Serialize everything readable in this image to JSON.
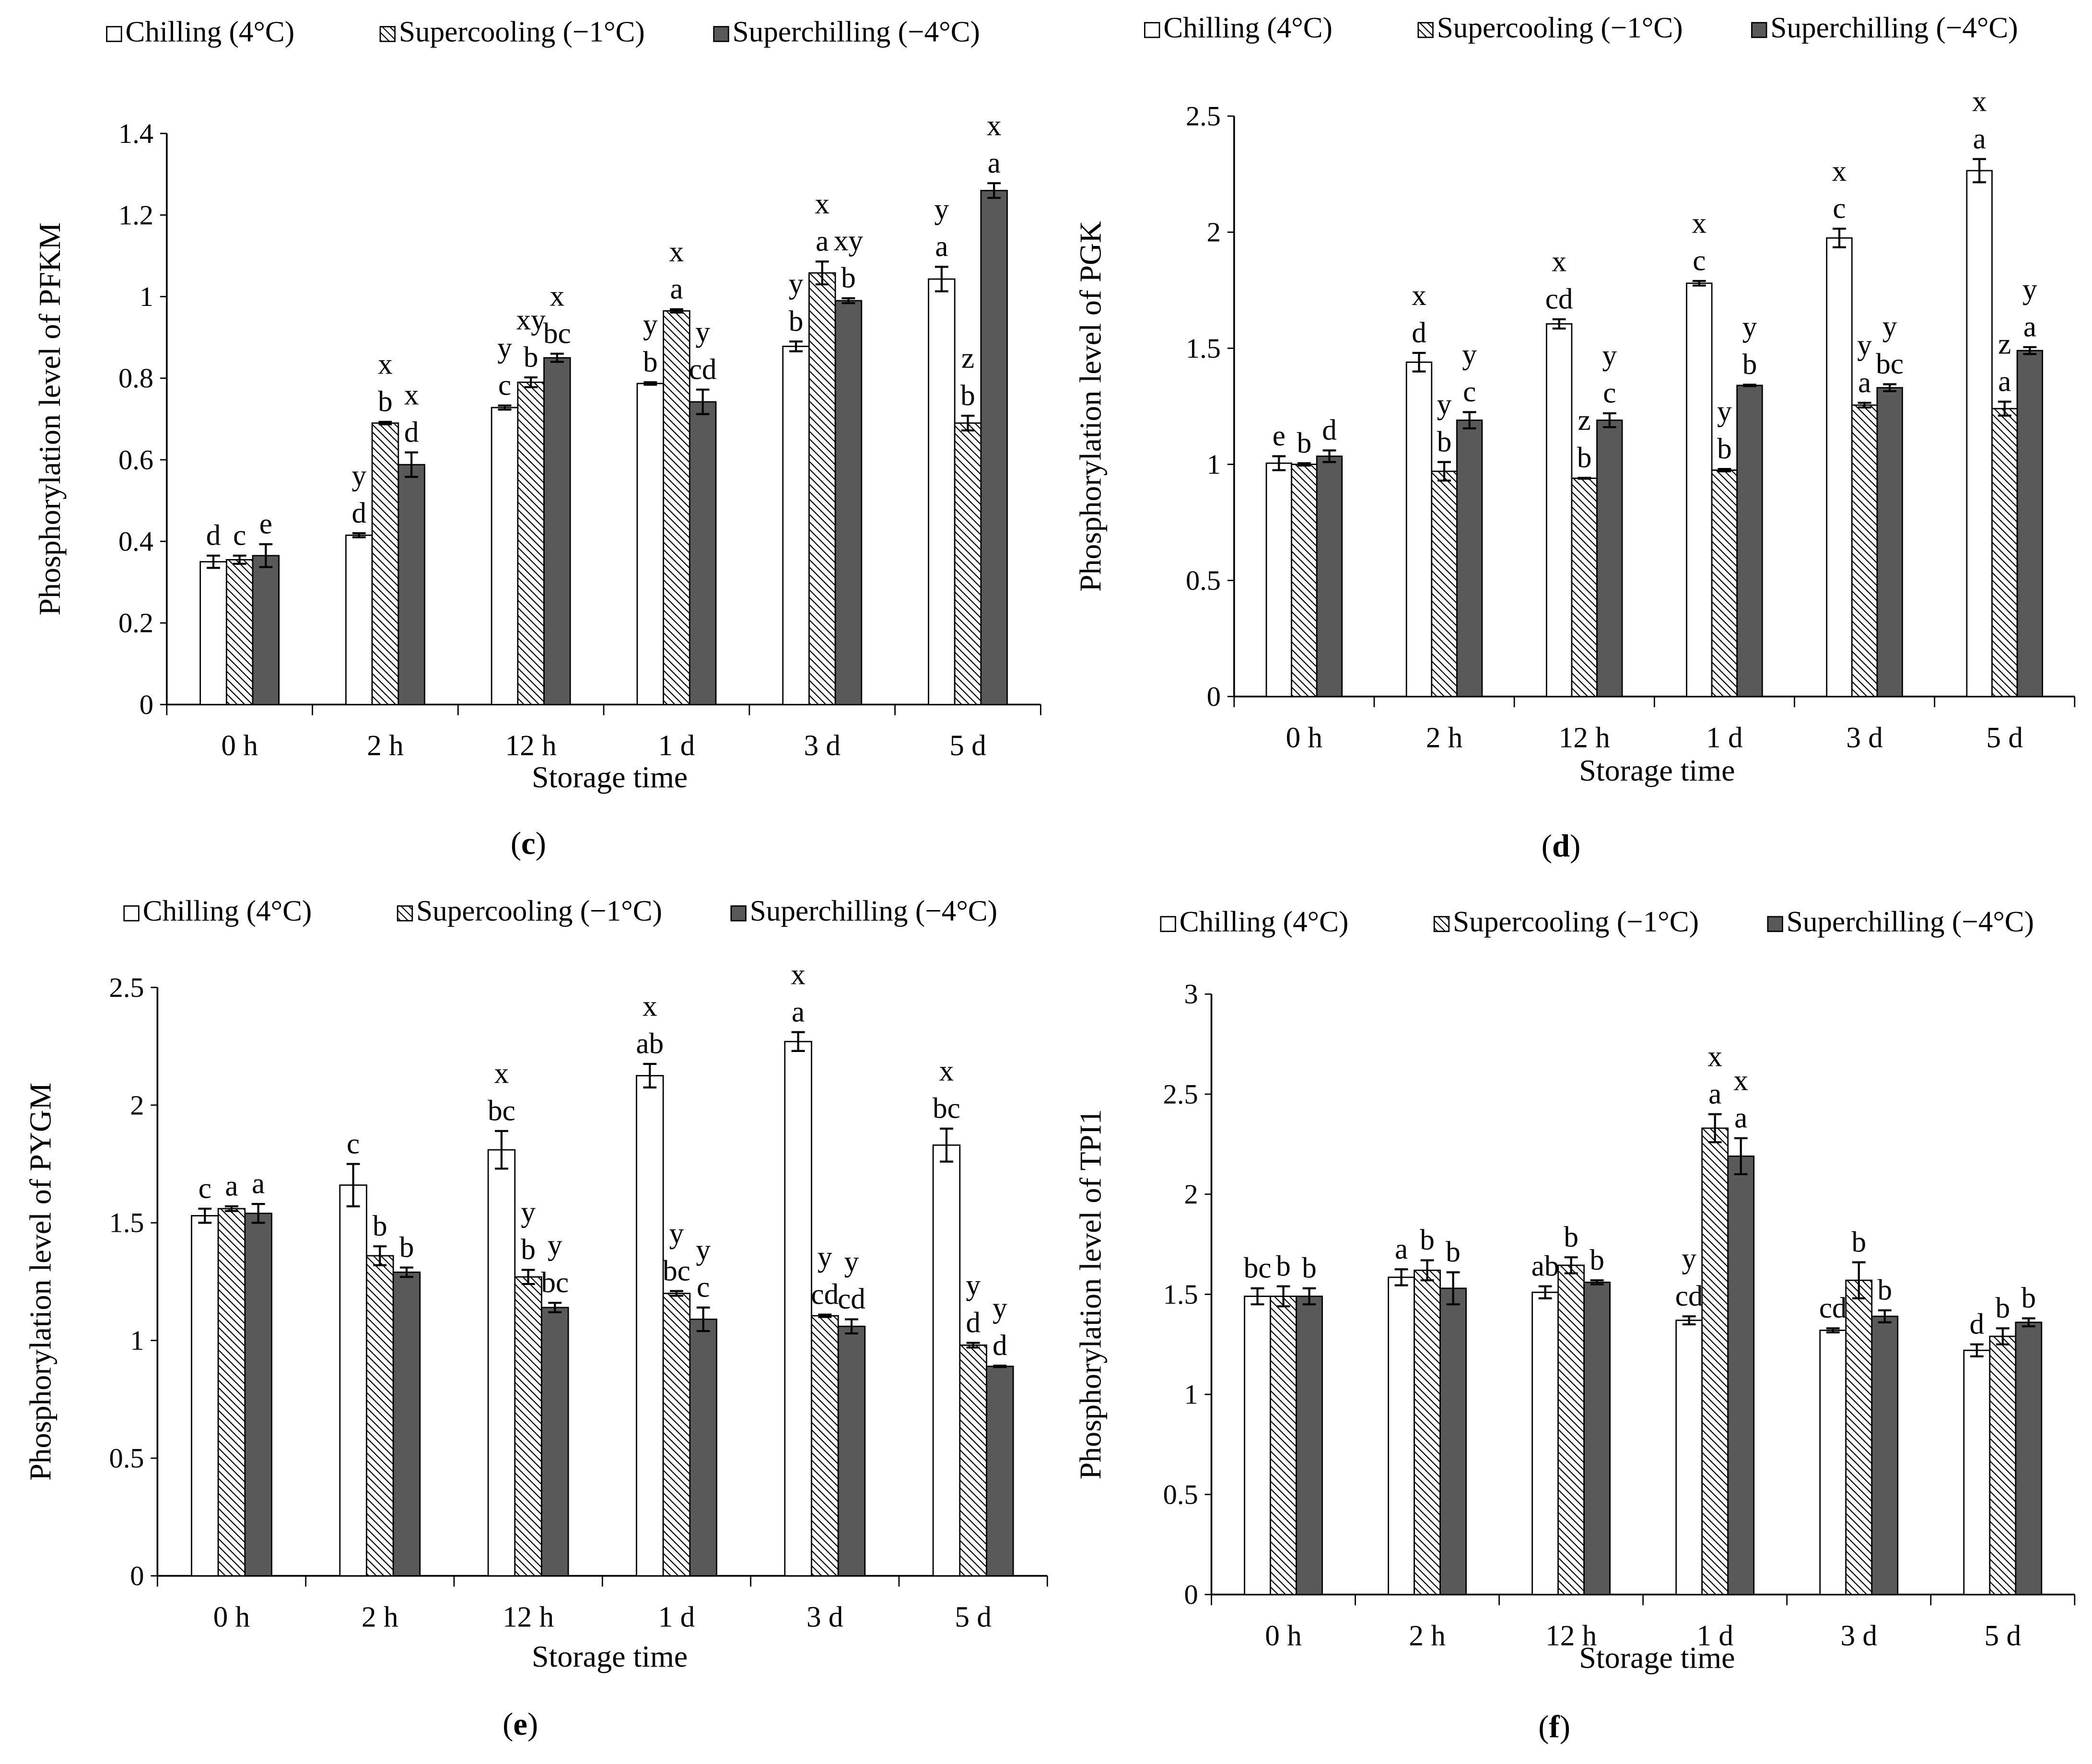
{
  "legend": [
    "Chilling (4°C)",
    "Supercooling (−1°C)",
    "Superchilling (−4°C)"
  ],
  "colors": {
    "chilling": "#ffffff",
    "supercooling": "hatch",
    "superchilling": "#595959"
  },
  "chart_data": [
    {
      "type": "bar",
      "panel_label": "c",
      "ylabel": "Phosphorylation level of PFKM",
      "xlabel": "Storage time",
      "categories": [
        "0 h",
        "2 h",
        "12 h",
        "1 d",
        "3 d",
        "5 d"
      ],
      "ylim": [
        0,
        1.4
      ],
      "yticks": [
        "0",
        "0.2",
        "0.4",
        "0.6",
        "0.8",
        "1",
        "1.2",
        "1.4"
      ],
      "ystep": 0.2,
      "series": [
        {
          "name": "Chilling (4°C)",
          "values": [
            0.35,
            0.415,
            0.728,
            0.787,
            0.878,
            1.043
          ],
          "errors": [
            0.015,
            0.005,
            0.005,
            0.003,
            0.012,
            0.03
          ],
          "labels": [
            [
              "d"
            ],
            [
              "y",
              "d"
            ],
            [
              "y",
              "c"
            ],
            [
              "y",
              "b"
            ],
            [
              "y",
              "b"
            ],
            [
              "y",
              "a"
            ]
          ]
        },
        {
          "name": "Supercooling (−1°C)",
          "values": [
            0.355,
            0.69,
            0.79,
            0.965,
            1.058,
            0.69
          ],
          "errors": [
            0.01,
            0.003,
            0.012,
            0.004,
            0.028,
            0.018
          ],
          "labels": [
            [
              "c"
            ],
            [
              "x",
              "b"
            ],
            [
              "xy",
              "b"
            ],
            [
              "x",
              "a"
            ],
            [
              "x",
              "a"
            ],
            [
              "z",
              "b"
            ]
          ]
        },
        {
          "name": "Superchilling (−4°C)",
          "values": [
            0.365,
            0.588,
            0.85,
            0.742,
            0.99,
            1.26
          ],
          "errors": [
            0.028,
            0.03,
            0.01,
            0.03,
            0.006,
            0.018
          ],
          "labels": [
            [
              "e"
            ],
            [
              "x",
              "d"
            ],
            [
              "x",
              "bc"
            ],
            [
              "y",
              "cd"
            ],
            [
              "xy",
              "b"
            ],
            [
              "x",
              "a"
            ]
          ]
        }
      ]
    },
    {
      "type": "bar",
      "panel_label": "d",
      "ylabel": "Phosphorylation level of PGK",
      "xlabel": "Storage time",
      "categories": [
        "0 h",
        "2 h",
        "12 h",
        "1 d",
        "3 d",
        "5 d"
      ],
      "ylim": [
        0,
        2.5
      ],
      "yticks": [
        "0",
        "0.5",
        "1",
        "1.5",
        "2",
        "2.5"
      ],
      "ystep": 0.5,
      "series": [
        {
          "name": "Chilling (4°C)",
          "values": [
            1.005,
            1.44,
            1.605,
            1.78,
            1.975,
            2.265
          ],
          "errors": [
            0.03,
            0.04,
            0.02,
            0.01,
            0.04,
            0.05
          ],
          "labels": [
            [
              "e"
            ],
            [
              "x",
              "d"
            ],
            [
              "x",
              "cd"
            ],
            [
              "x",
              "c"
            ],
            [
              "x",
              "c"
            ],
            [
              "x",
              "a"
            ]
          ]
        },
        {
          "name": "Supercooling (−1°C)",
          "values": [
            1.0,
            0.97,
            0.94,
            0.975,
            1.255,
            1.24
          ],
          "errors": [
            0.005,
            0.04,
            0.002,
            0.005,
            0.01,
            0.03
          ],
          "labels": [
            [
              "b"
            ],
            [
              "y",
              "b"
            ],
            [
              "z",
              "b"
            ],
            [
              "y",
              "b"
            ],
            [
              "y",
              "a"
            ],
            [
              "z",
              "a"
            ]
          ]
        },
        {
          "name": "Superchilling (−4°C)",
          "values": [
            1.035,
            1.19,
            1.19,
            1.34,
            1.33,
            1.49
          ],
          "errors": [
            0.025,
            0.035,
            0.03,
            0.003,
            0.015,
            0.015
          ],
          "labels": [
            [
              "d"
            ],
            [
              "y",
              "c"
            ],
            [
              "y",
              "c"
            ],
            [
              "y",
              "b"
            ],
            [
              "y",
              "bc"
            ],
            [
              "y",
              "a"
            ]
          ]
        }
      ]
    },
    {
      "type": "bar",
      "panel_label": "e",
      "ylabel": "Phosphorylation level of PYGM",
      "xlabel": "Storage time",
      "categories": [
        "0 h",
        "2 h",
        "12 h",
        "1 d",
        "3 d",
        "5 d"
      ],
      "ylim": [
        0,
        2.5
      ],
      "yticks": [
        "0",
        "0.5",
        "1",
        "1.5",
        "2",
        "2.5"
      ],
      "ystep": 0.5,
      "series": [
        {
          "name": "Chilling (4°C)",
          "values": [
            1.53,
            1.66,
            1.81,
            2.125,
            2.27,
            1.83
          ],
          "errors": [
            0.03,
            0.09,
            0.08,
            0.05,
            0.04,
            0.07
          ],
          "labels": [
            [
              "c"
            ],
            [
              "c"
            ],
            [
              "x",
              "bc"
            ],
            [
              "x",
              "ab"
            ],
            [
              "x",
              "a"
            ],
            [
              "x",
              "bc"
            ]
          ]
        },
        {
          "name": "Supercooling (−1°C)",
          "values": [
            1.56,
            1.36,
            1.27,
            1.2,
            1.105,
            0.98
          ],
          "errors": [
            0.01,
            0.04,
            0.03,
            0.01,
            0.005,
            0.01
          ],
          "labels": [
            [
              "a"
            ],
            [
              "b"
            ],
            [
              "y",
              "b"
            ],
            [
              "y",
              "bc"
            ],
            [
              "y",
              "cd"
            ],
            [
              "y",
              "d"
            ]
          ]
        },
        {
          "name": "Superchilling (−4°C)",
          "values": [
            1.54,
            1.29,
            1.14,
            1.09,
            1.06,
            0.89
          ],
          "errors": [
            0.04,
            0.02,
            0.02,
            0.05,
            0.03,
            0.003
          ],
          "labels": [
            [
              "a"
            ],
            [
              "b"
            ],
            [
              "y",
              "bc"
            ],
            [
              "y",
              "c"
            ],
            [
              "y",
              "cd"
            ],
            [
              "y",
              "d"
            ]
          ]
        }
      ]
    },
    {
      "type": "bar",
      "panel_label": "f",
      "ylabel": "Phosphorylation level of TPI1",
      "xlabel": "Storage time",
      "categories": [
        "0 h",
        "2 h",
        "12 h",
        "1 d",
        "3 d",
        "5 d"
      ],
      "ylim": [
        0,
        3
      ],
      "yticks": [
        "0",
        "0.5",
        "1",
        "1.5",
        "2",
        "2.5",
        "3"
      ],
      "ystep": 0.5,
      "series": [
        {
          "name": "Chilling (4°C)",
          "values": [
            1.49,
            1.585,
            1.51,
            1.37,
            1.32,
            1.22
          ],
          "errors": [
            0.04,
            0.04,
            0.03,
            0.02,
            0.01,
            0.03
          ],
          "labels": [
            [
              "bc"
            ],
            [
              "a"
            ],
            [
              "ab"
            ],
            [
              "y",
              "cd"
            ],
            [
              "cd"
            ],
            [
              "d"
            ]
          ]
        },
        {
          "name": "Supercooling (−1°C)",
          "values": [
            1.49,
            1.62,
            1.645,
            2.33,
            1.57,
            1.29
          ],
          "errors": [
            0.05,
            0.05,
            0.04,
            0.07,
            0.09,
            0.04
          ],
          "labels": [
            [
              "b"
            ],
            [
              "b"
            ],
            [
              "b"
            ],
            [
              "x",
              "a"
            ],
            [
              "b"
            ],
            [
              "b"
            ]
          ]
        },
        {
          "name": "Superchilling (−4°C)",
          "values": [
            1.49,
            1.53,
            1.56,
            2.19,
            1.39,
            1.36
          ],
          "errors": [
            0.04,
            0.08,
            0.01,
            0.09,
            0.03,
            0.02
          ],
          "labels": [
            [
              "b"
            ],
            [
              "b"
            ],
            [
              "b"
            ],
            [
              "x",
              "a"
            ],
            [
              "b"
            ],
            [
              "b"
            ]
          ]
        }
      ]
    }
  ]
}
